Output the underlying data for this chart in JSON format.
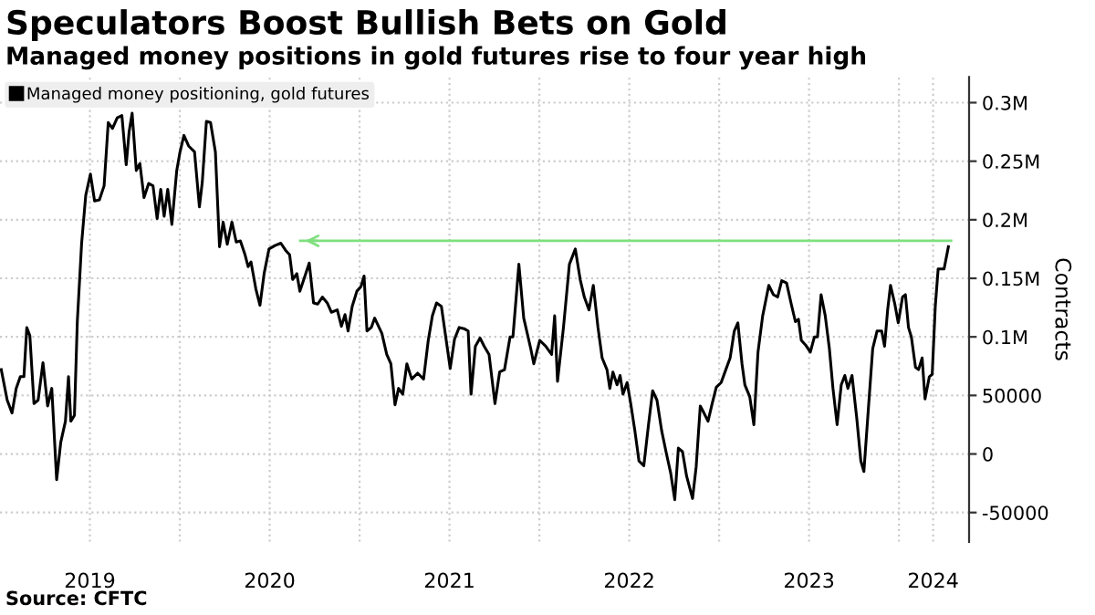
{
  "chart_data": {
    "type": "line",
    "title": "Speculators Boost Bullish Bets on Gold",
    "subtitle": "Managed money positions in gold futures rise to four year high",
    "ylabel": "Contracts",
    "annotations": [
      "Source: CFTC"
    ],
    "series": [
      {
        "name": "Managed money positioning, gold futures",
        "color": "#000000",
        "x": [
          2019.007,
          2019.04,
          2019.067,
          2019.09,
          2019.113,
          2019.133,
          2019.149,
          2019.166,
          2019.189,
          2019.212,
          2019.239,
          2019.265,
          2019.288,
          2019.315,
          2019.338,
          2019.364,
          2019.381,
          2019.394,
          2019.414,
          2019.43,
          2019.454,
          2019.477,
          2019.503,
          2019.526,
          2019.553,
          2019.579,
          2019.602,
          2019.626,
          2019.652,
          2019.678,
          2019.702,
          2019.718,
          2019.735,
          2019.758,
          2019.778,
          2019.801,
          2019.827,
          2019.851,
          2019.874,
          2019.894,
          2019.913,
          2019.933,
          2019.956,
          2019.983,
          2020.0,
          2020.023,
          2020.049,
          2020.082,
          2020.109,
          2020.125,
          2020.148,
          2020.171,
          2020.198,
          2020.221,
          2020.241,
          2020.264,
          2020.29,
          2020.314,
          2020.337,
          2020.363,
          2020.38,
          2020.396,
          2020.423,
          2020.446,
          2020.469,
          2020.496,
          2020.529,
          2020.562,
          2020.588,
          2020.611,
          2020.628,
          2020.651,
          2020.668,
          2020.694,
          2020.72,
          2020.744,
          2020.767,
          2020.793,
          2020.82,
          2020.843,
          2020.876,
          2020.899,
          2020.919,
          2020.936,
          2020.959,
          2020.985,
          2021.008,
          2021.025,
          2021.041,
          2021.065,
          2021.084,
          2021.124,
          2021.151,
          2021.174,
          2021.197,
          2021.217,
          2021.24,
          2021.263,
          2021.29,
          2021.323,
          2021.356,
          2021.382,
          2021.405,
          2021.428,
          2021.455,
          2021.481,
          2021.504,
          2021.528,
          2021.554,
          2021.581,
          2021.604,
          2021.62,
          2021.644,
          2021.67,
          2021.693,
          2021.72,
          2021.753,
          2021.779,
          2021.806,
          2021.837,
          2021.853,
          2021.886,
          2021.913,
          2021.952,
          2021.969,
          2022.002,
          2022.035,
          2022.068,
          2022.085,
          2022.101,
          2022.134,
          2022.167,
          2022.2,
          2022.227,
          2022.25,
          2022.276,
          2022.3,
          2022.326,
          2022.349,
          2022.376,
          2022.392,
          2022.409,
          2022.432,
          2022.449,
          2022.465,
          2022.488,
          2022.508,
          2022.531,
          2022.554,
          2022.581,
          2022.607,
          2022.63,
          2022.654,
          2022.68,
          2022.707,
          2022.73,
          2022.753,
          2022.773,
          2022.796,
          2022.819,
          2022.852,
          2022.872,
          2022.895,
          2022.912,
          2022.938,
          2022.961,
          2022.984,
          2023.011,
          2023.037,
          2023.061,
          2023.084,
          2023.104,
          2023.127,
          2023.143,
          2023.17,
          2023.193,
          2023.216,
          2023.242,
          2023.276,
          2023.302,
          2023.325,
          2023.348,
          2023.375,
          2023.401,
          2023.424,
          2023.441,
          2023.457,
          2023.481,
          2023.507,
          2023.53,
          2023.547,
          2023.567,
          2023.59,
          2023.613,
          2023.633,
          2023.656,
          2023.679,
          2023.699,
          2023.716,
          2023.739,
          2023.765,
          2023.788,
          2023.805,
          2023.831,
          2023.854,
          2023.878,
          2023.904,
          2023.92,
          2023.937,
          2023.953,
          2023.977,
          2023.996,
          2024.02,
          2024.036,
          2024.053,
          2024.069,
          2024.092,
          2024.109,
          2024.129,
          2024.145,
          2024.169,
          2024.185,
          2024.202,
          2024.218,
          2024.251,
          2024.275
        ],
        "values": [
          72000,
          46000,
          35000,
          56000,
          66000,
          66000,
          108000,
          101000,
          43000,
          46000,
          78000,
          41000,
          56000,
          -22000,
          10000,
          28000,
          66000,
          28000,
          33000,
          113000,
          180000,
          221000,
          239000,
          216000,
          217000,
          229000,
          283000,
          278000,
          287000,
          289000,
          247000,
          275000,
          291000,
          242000,
          248000,
          219000,
          231000,
          229000,
          201000,
          226000,
          203000,
          226000,
          196000,
          242000,
          257000,
          272000,
          263000,
          258000,
          211000,
          232000,
          284000,
          283000,
          258000,
          177000,
          198000,
          179000,
          198000,
          181000,
          182000,
          170000,
          160000,
          164000,
          141000,
          127000,
          154000,
          175000,
          178000,
          180000,
          174000,
          170000,
          149000,
          154000,
          139000,
          151000,
          163000,
          129000,
          128000,
          134000,
          129000,
          121000,
          123000,
          109000,
          119000,
          105000,
          126000,
          139000,
          143000,
          152000,
          105000,
          108000,
          116000,
          103000,
          85000,
          77000,
          42000,
          56000,
          51000,
          77000,
          64000,
          69000,
          64000,
          97000,
          118000,
          129000,
          126000,
          98000,
          73000,
          98000,
          108000,
          107000,
          105000,
          51000,
          92000,
          99000,
          92000,
          85000,
          43000,
          70000,
          72000,
          100000,
          100000,
          162000,
          116000,
          90000,
          77000,
          97000,
          92000,
          85000,
          118000,
          62000,
          108000,
          162000,
          175000,
          149000,
          134000,
          123000,
          144000,
          108000,
          82000,
          72000,
          56000,
          70000,
          59000,
          67000,
          51000,
          61000,
          43000,
          20000,
          -6000,
          -10000,
          25000,
          54000,
          46000,
          20000,
          0,
          -16000,
          -39000,
          5000,
          2000,
          -19000,
          -38000,
          -11000,
          41000,
          36000,
          28000,
          43000,
          57000,
          61000,
          72000,
          82000,
          105000,
          112000,
          77000,
          59000,
          49000,
          25000,
          87000,
          118000,
          144000,
          136000,
          134000,
          148000,
          146000,
          128000,
          113000,
          115000,
          97000,
          93000,
          87000,
          100000,
          100000,
          136000,
          118000,
          90000,
          56000,
          25000,
          59000,
          67000,
          56000,
          67000,
          31000,
          -6000,
          -15000,
          41000,
          90000,
          105000,
          105000,
          92000,
          123000,
          144000,
          128000,
          112000,
          134000,
          136000,
          108000,
          100000,
          74000,
          72000,
          82000,
          47000,
          66000,
          68000,
          126000,
          158000,
          158000,
          177000
        ]
      },
      {
        "color": "#7ee07e",
        "x": [
          2020.67,
          2024.29
        ],
        "values": [
          182000,
          182000
        ]
      }
    ],
    "xlim": [
      2019.0,
      2024.39
    ],
    "xticks": [
      {
        "value": 2019.5,
        "label": "2019"
      },
      {
        "value": 2020.0,
        "label": null
      },
      {
        "value": 2020.5,
        "label": "2020"
      },
      {
        "value": 2021.0,
        "label": null
      },
      {
        "value": 2021.5,
        "label": "2021"
      },
      {
        "value": 2022.0,
        "label": null
      },
      {
        "value": 2022.5,
        "label": "2022"
      },
      {
        "value": 2023.0,
        "label": null
      },
      {
        "value": 2023.5,
        "label": "2023"
      },
      {
        "value": 2024.0,
        "label": null
      },
      {
        "value": 2024.19,
        "label": "2024"
      }
    ],
    "ylim": [
      -75000,
      322000
    ],
    "yticks": [
      {
        "value": -50000,
        "label": "-50000"
      },
      0,
      50000,
      {
        "value": 100000,
        "label": "0.1M"
      },
      {
        "value": 150000,
        "label": "0.15M"
      },
      {
        "value": 200000,
        "label": "0.2M"
      },
      {
        "value": 250000,
        "label": "0.25M"
      },
      {
        "value": 300000,
        "label": "0.3M"
      }
    ],
    "grid": true,
    "legend": "top left"
  }
}
